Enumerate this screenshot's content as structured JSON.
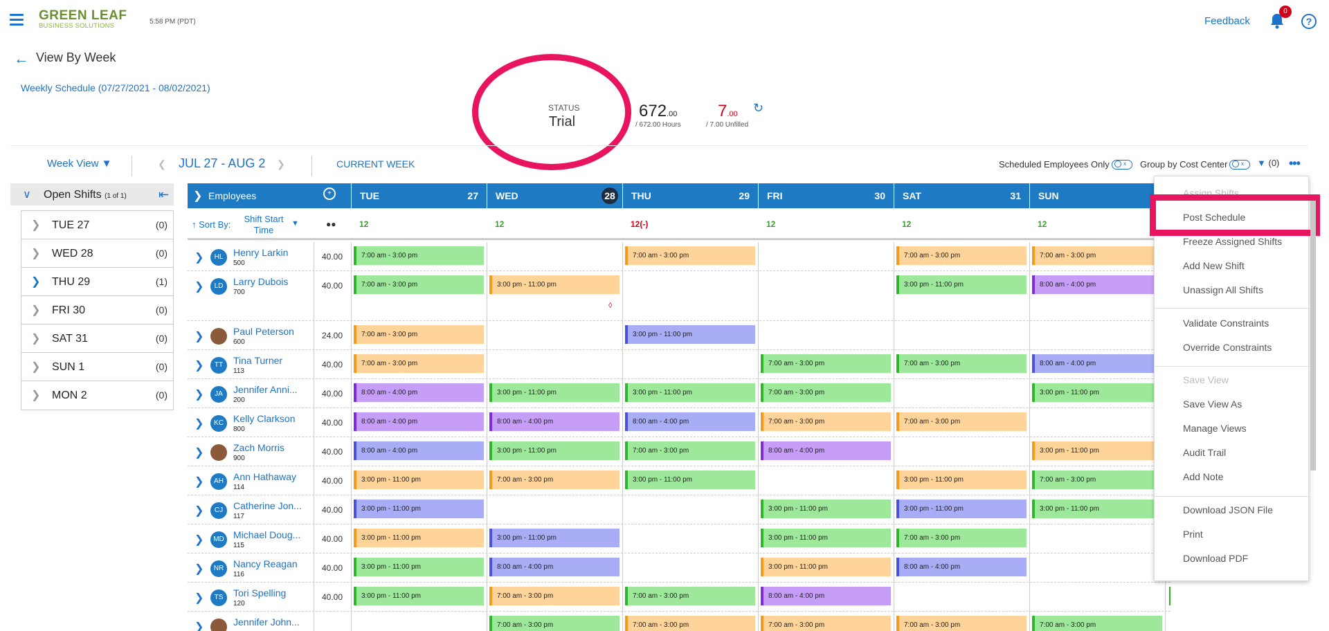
{
  "header": {
    "logo_line1": "GREEN LEAF",
    "logo_line2": "BUSINESS SOLUTIONS",
    "time": "5:58 PM (PDT)",
    "feedback": "Feedback",
    "notifications": "0",
    "help": "?"
  },
  "page": {
    "title": "View By Week",
    "weekly": "Weekly Schedule (07/27/2021 - 08/02/2021)"
  },
  "status": {
    "label": "STATUS",
    "value": "Trial",
    "hours_main": "672",
    "hours_dec": ".00",
    "hours_sub": "/ 672.00 Hours",
    "unfilled_main": "7",
    "unfilled_dec": ".00",
    "unfilled_sub": "/ 7.00 Unfilled"
  },
  "toolbar": {
    "week_view": "Week View",
    "range": "JUL 27 - AUG 2",
    "current_week": "CURRENT WEEK",
    "scheduled_only": "Scheduled Employees Only",
    "group_by": "Group by Cost Center",
    "toggle_label": "x",
    "filter_count": "(0)"
  },
  "open_shifts": {
    "title": "Open Shifts",
    "count": "(1 of 1)",
    "rows": [
      {
        "day": "TUE 27",
        "n": "(0)"
      },
      {
        "day": "WED 28",
        "n": "(0)"
      },
      {
        "day": "THU 29",
        "n": "(1)"
      },
      {
        "day": "FRI 30",
        "n": "(0)"
      },
      {
        "day": "SAT 31",
        "n": "(0)"
      },
      {
        "day": "SUN 1",
        "n": "(0)"
      },
      {
        "day": "MON 2",
        "n": "(0)"
      }
    ]
  },
  "grid": {
    "employees_label": "Employees",
    "sort_by": "Sort By:",
    "sort_value": "Shift Start Time",
    "days": [
      {
        "name": "TUE",
        "date": "27",
        "count": "12"
      },
      {
        "name": "WED",
        "date": "28",
        "count": "12"
      },
      {
        "name": "THU",
        "date": "29",
        "count": "12(-)"
      },
      {
        "name": "FRI",
        "date": "30",
        "count": "12"
      },
      {
        "name": "SAT",
        "date": "31",
        "count": "12"
      },
      {
        "name": "SUN",
        "date": "",
        "count": "12"
      }
    ],
    "employees": [
      {
        "initials": "HL",
        "name": "Henry Larkin",
        "id": "500",
        "hours": "40.00"
      },
      {
        "initials": "LD",
        "name": "Larry Dubois",
        "id": "700",
        "hours": "40.00"
      },
      {
        "initials": "",
        "name": "Paul Peterson",
        "id": "600",
        "hours": "24.00"
      },
      {
        "initials": "TT",
        "name": "Tina Turner",
        "id": "113",
        "hours": "40.00"
      },
      {
        "initials": "JA",
        "name": "Jennifer Anni...",
        "id": "200",
        "hours": "40.00"
      },
      {
        "initials": "KC",
        "name": "Kelly Clarkson",
        "id": "800",
        "hours": "40.00"
      },
      {
        "initials": "",
        "name": "Zach Morris",
        "id": "900",
        "hours": "40.00"
      },
      {
        "initials": "AH",
        "name": "Ann Hathaway",
        "id": "114",
        "hours": "40.00"
      },
      {
        "initials": "CJ",
        "name": "Catherine Jon...",
        "id": "117",
        "hours": "40.00"
      },
      {
        "initials": "MD",
        "name": "Michael Doug...",
        "id": "115",
        "hours": "40.00"
      },
      {
        "initials": "NR",
        "name": "Nancy Reagan",
        "id": "116",
        "hours": "40.00"
      },
      {
        "initials": "TS",
        "name": "Tori Spelling",
        "id": "120",
        "hours": "40.00"
      },
      {
        "initials": "",
        "name": "Jennifer John...",
        "id": "",
        "hours": ""
      }
    ],
    "shifts": {
      "a": "7:00 am - 3:00 pm",
      "b": "3:00 pm - 11:00 pm",
      "c": "8:00 am - 4:00 pm"
    }
  },
  "menu": {
    "items": [
      "Assign Shifts",
      "Post Schedule",
      "Freeze Assigned Shifts",
      "Add New Shift",
      "Unassign All Shifts",
      "Validate Constraints",
      "Override Constraints",
      "Save View",
      "Save View As",
      "Manage Views",
      "Audit Trail",
      "Add Note",
      "Download JSON File",
      "Print",
      "Download PDF"
    ]
  },
  "colors": {
    "accent": "#1e7ac2",
    "highlight": "#e8155e",
    "green": "#9de89a",
    "orange": "#fed49a",
    "purple": "#c79ef7",
    "blue": "#a9adf6"
  }
}
